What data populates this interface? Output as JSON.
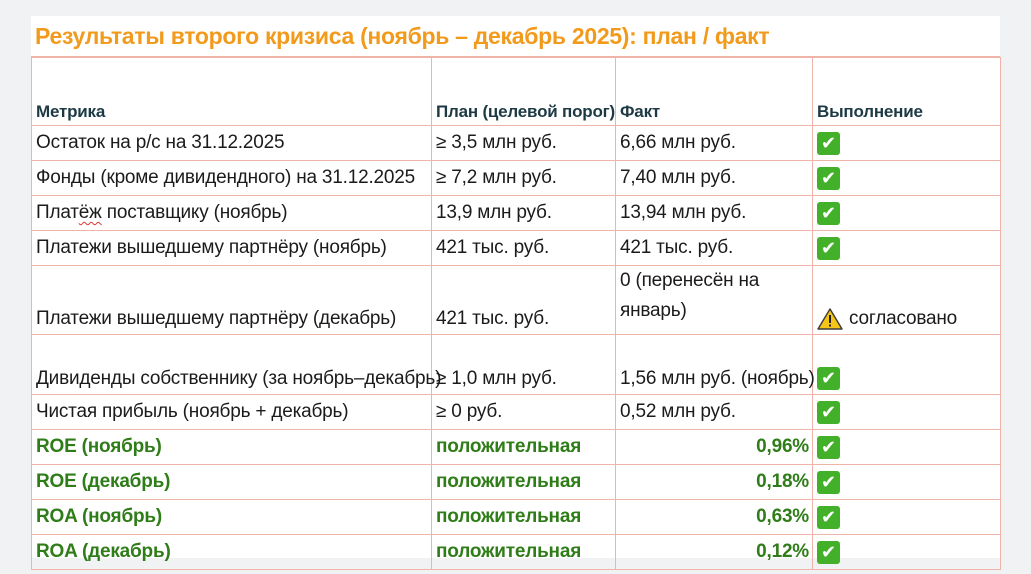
{
  "title": "Результаты второго кризиса (ноябрь – декабрь 2025): план / факт",
  "headers": {
    "metric": "Метрика",
    "plan": "План (целевой порог)",
    "fact": "Факт",
    "status": "Выполнение"
  },
  "check_glyph": "✔",
  "rows": [
    {
      "metric": "Остаток на р/с на 31.12.2025",
      "plan": "≥ 3,5 млн руб.",
      "fact": "6,66 млн руб.",
      "status": "check"
    },
    {
      "metric": "Фонды (кроме дивидендного) на 31.12.2025",
      "plan": "≥ 7,2 млн руб.",
      "fact": "7,40 млн руб.",
      "status": "check"
    },
    {
      "metric_a": "Плат",
      "metric_b": "ёж",
      "metric_c": " поставщику (ноябрь)",
      "plan": "13,9 млн руб.",
      "fact": "13,94 млн руб.",
      "status": "check"
    },
    {
      "metric": "Платежи вышедшему партнёру (ноябрь)",
      "plan": "421 тыс. руб.",
      "fact": "421 тыс. руб.",
      "status": "check"
    },
    {
      "metric": "Платежи вышедшему партнёру (декабрь)",
      "plan": "421 тыс. руб.",
      "fact": "0 (перенесён на январь)",
      "status": "warning",
      "status_text": "согласовано"
    },
    {
      "metric": "Дивиденды собственнику (за ноябрь–декабрь)",
      "plan": "≥ 1,0 млн руб.",
      "fact": "1,56 млн руб. (ноябрь)",
      "status": "check"
    },
    {
      "metric": "Чистая прибыль (ноябрь + декабрь)",
      "plan": "≥ 0 руб.",
      "fact": "0,52 млн руб.",
      "status": "check"
    },
    {
      "metric": "ROE (ноябрь)",
      "plan": "положительная",
      "fact": "0,96%",
      "status": "check"
    },
    {
      "metric": "ROE (декабрь)",
      "plan": "положительная",
      "fact": "0,18%",
      "status": "check"
    },
    {
      "metric": "ROA (ноябрь)",
      "plan": "положительная",
      "fact": "0,63%",
      "status": "check"
    },
    {
      "metric": "ROA (декабрь)",
      "plan": "положительная",
      "fact": "0,12%",
      "status": "check"
    }
  ],
  "colors": {
    "title": "#f29a1b",
    "header_text": "#1d3a44",
    "ratio_text": "#2f7d18",
    "grid": "#f0b3a8",
    "check_bg": "#43b02a",
    "warning_fill": "#f5c518"
  },
  "icons": {
    "check": "check-mark-icon",
    "warning": "warning-triangle-icon"
  }
}
